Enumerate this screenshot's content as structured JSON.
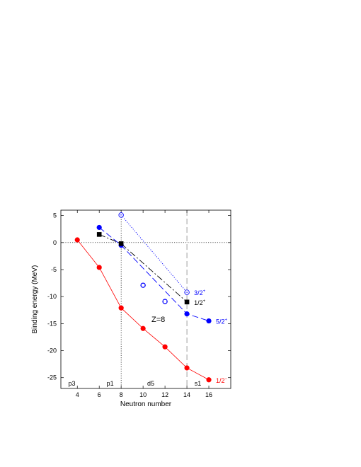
{
  "chart_data": {
    "type": "line",
    "xlabel": "Neutron number",
    "ylabel": "Binding energy (MeV)",
    "xlim": [
      2.5,
      18
    ],
    "ylim": [
      -27,
      6
    ],
    "x_ticks": [
      "4",
      "6",
      "8",
      "10",
      "12",
      "14",
      "16"
    ],
    "y_ticks": [
      "5",
      "0",
      "-5",
      "-10",
      "-15",
      "-20",
      "-25"
    ],
    "annotation": "Z=8",
    "shell_labels": [
      {
        "text": "p3",
        "x": 3.5
      },
      {
        "text": "p1",
        "x": 7
      },
      {
        "text": "d5",
        "x": 10.7
      },
      {
        "text": "s1",
        "x": 15
      }
    ],
    "reference_lines": {
      "horizontal_y": 0,
      "vertical_x": [
        8,
        14
      ]
    },
    "series": [
      {
        "label": "1/2",
        "label_sup": "−",
        "color": "#ff0000",
        "marker": "filled-circle",
        "line": "solid",
        "x": [
          4,
          6,
          8,
          10,
          12,
          14,
          16
        ],
        "y": [
          0.5,
          -4.6,
          -12.1,
          -15.9,
          -19.3,
          -23.2,
          -25.4
        ]
      },
      {
        "label": "5/2",
        "label_sup": "+",
        "color": "#0000ff",
        "marker": "filled-circle",
        "line": "dashed",
        "x": [
          6,
          8,
          14,
          16
        ],
        "y": [
          2.8,
          -0.5,
          -13.2,
          -14.5
        ]
      },
      {
        "label": "1/2",
        "label_sup": "+",
        "color": "#000000",
        "marker": "filled-square",
        "line": "dashdot",
        "x": [
          6,
          8,
          14
        ],
        "y": [
          1.5,
          -0.2,
          -11
        ]
      },
      {
        "label": "3/2",
        "label_sup": "+",
        "color": "#0000ff",
        "marker": "open-circle",
        "line": "dotted",
        "x": [
          8,
          14
        ],
        "y": [
          5.1,
          -9.2
        ]
      },
      {
        "label": "",
        "color": "#0000ff",
        "marker": "open-circle-square",
        "line": "none",
        "x": [
          10,
          12
        ],
        "y": [
          -7.9,
          -10.9
        ]
      }
    ]
  }
}
